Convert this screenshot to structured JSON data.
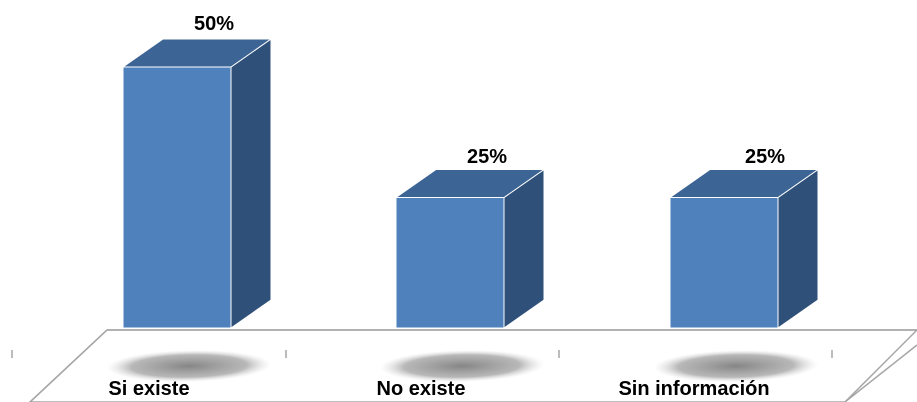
{
  "chart_data": {
    "type": "bar",
    "style": "3d-column",
    "categories": [
      "Si existe",
      "No existe",
      "Sin información"
    ],
    "values": [
      50,
      25,
      25
    ],
    "value_labels": [
      "50%",
      "25%",
      "25%"
    ],
    "unit": "%",
    "ylim": [
      0,
      50
    ],
    "grid": false,
    "legend": "none",
    "colors": {
      "front": "#4f81bd",
      "side": "#2f5179",
      "top": "#3c6595",
      "shadow": "#8c8c8c",
      "floor_line": "#a6a6a6"
    }
  }
}
